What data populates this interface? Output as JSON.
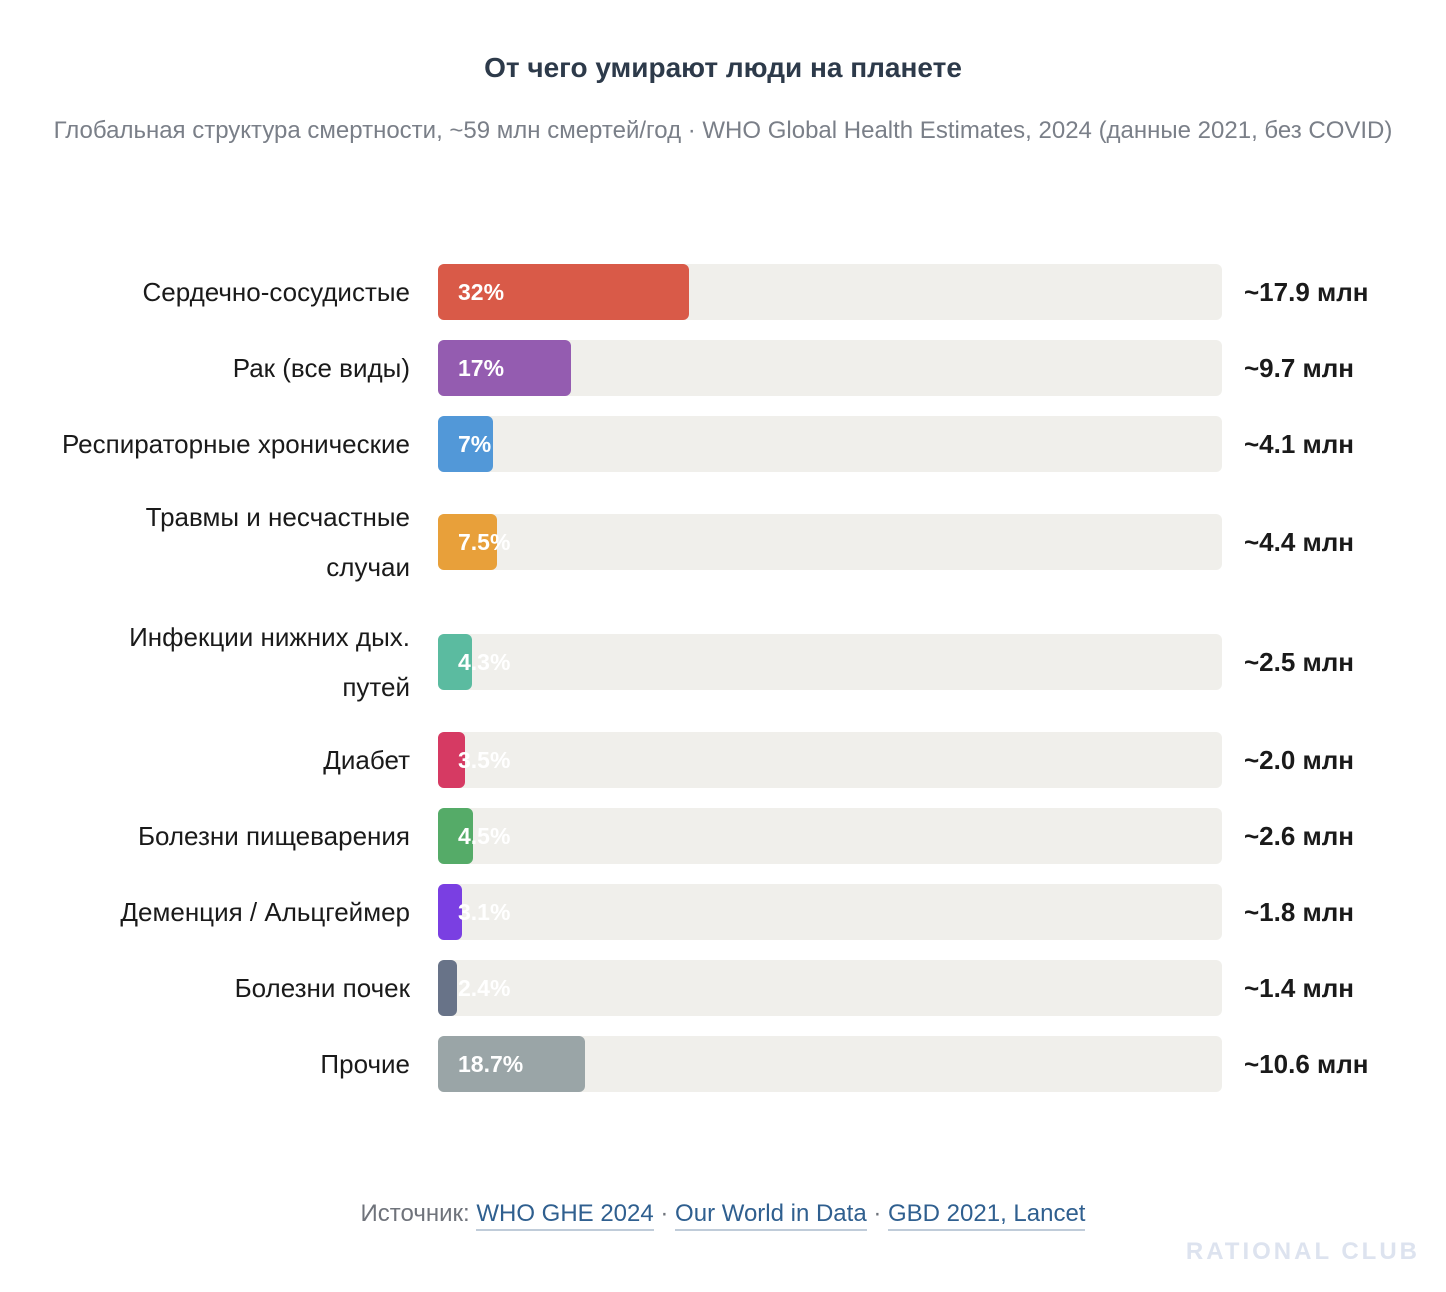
{
  "chart_data": {
    "type": "bar",
    "orientation": "horizontal",
    "title": "От чего умирают люди на планете",
    "subtitle": "Глобальная структура смертности, ~59 млн смертей/год · WHO Global Health Estimates, 2024 (данные 2021, без COVID)",
    "xlim": [
      0,
      100
    ],
    "categories": [
      "Сердечно-сосудистые",
      "Рак (все виды)",
      "Респираторные хронические",
      "Травмы и несчастные случаи",
      "Инфекции нижних дых. путей",
      "Диабет",
      "Болезни пищеварения",
      "Деменция / Альцгеймер",
      "Болезни почек",
      "Прочие"
    ],
    "values": [
      32,
      17,
      7,
      7.5,
      4.3,
      3.5,
      4.5,
      3.1,
      2.4,
      18.7
    ],
    "value_labels": [
      "32%",
      "17%",
      "7%",
      "7.5%",
      "4.3%",
      "3.5%",
      "4.5%",
      "3.1%",
      "2.4%",
      "18.7%"
    ],
    "absolute_labels": [
      "~17.9 млн",
      "~9.7 млн",
      "~4.1 млн",
      "~4.4 млн",
      "~2.5 млн",
      "~2.0 млн",
      "~2.6 млн",
      "~1.8 млн",
      "~1.4 млн",
      "~10.6 млн"
    ],
    "colors": [
      "#d95a48",
      "#945cb0",
      "#5298d8",
      "#e8a03a",
      "#5bbba0",
      "#d63a63",
      "#55ab68",
      "#7a3fe2",
      "#687388",
      "#9aa5a7"
    ]
  },
  "footer": {
    "prefix": "Источник: ",
    "links": [
      "WHO GHE 2024",
      "Our World in Data",
      "GBD 2021, Lancet"
    ],
    "separator": " · "
  },
  "brand": "RATIONAL CLUB"
}
